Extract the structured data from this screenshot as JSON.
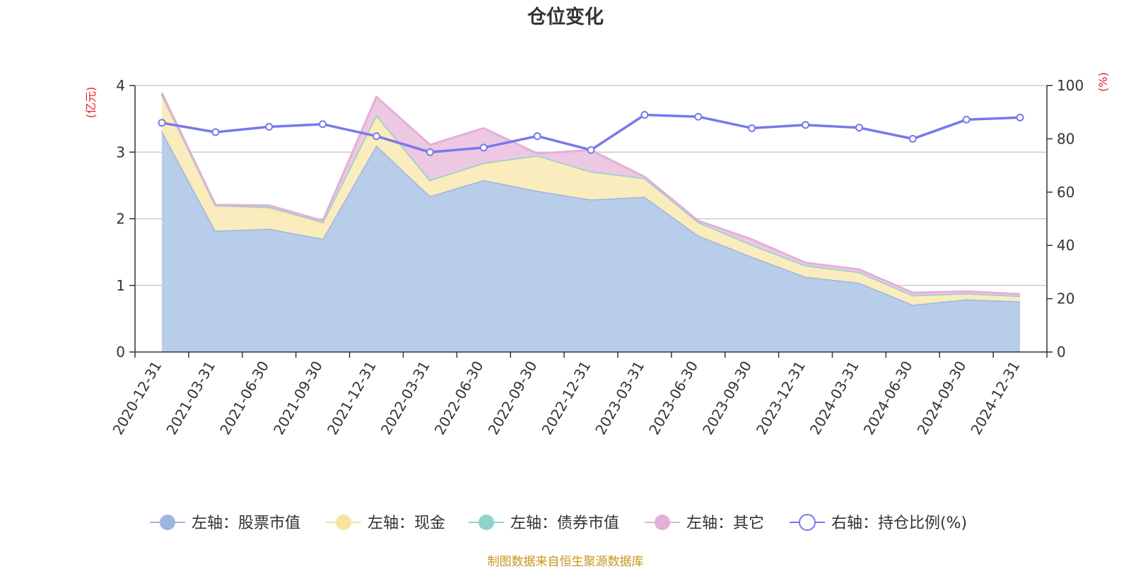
{
  "chart_data": {
    "type": "area",
    "title": "仓位变化",
    "left_axis": {
      "unit_label": "(亿元)",
      "ylim": [
        0,
        4
      ],
      "ticks": [
        "0",
        "1",
        "2",
        "3",
        "4"
      ]
    },
    "right_axis": {
      "unit_label": "(%)",
      "ylim": [
        0,
        100
      ],
      "ticks": [
        "0",
        "20",
        "40",
        "60",
        "80",
        "100"
      ]
    },
    "categories": [
      "2020-12-31",
      "2021-03-31",
      "2021-06-30",
      "2021-09-30",
      "2021-12-31",
      "2022-03-31",
      "2022-06-30",
      "2022-09-30",
      "2022-12-31",
      "2023-03-31",
      "2023-06-30",
      "2023-09-30",
      "2023-12-31",
      "2024-03-31",
      "2024-06-30",
      "2024-09-30",
      "2024-12-31"
    ],
    "stacked_series": [
      {
        "name": "左轴：股票市值",
        "color": "#9db6e0",
        "fill": "#b8cdea",
        "values": [
          3.32,
          1.82,
          1.85,
          1.7,
          3.1,
          2.34,
          2.58,
          2.42,
          2.29,
          2.33,
          1.75,
          1.43,
          1.13,
          1.04,
          0.71,
          0.79,
          0.76
        ]
      },
      {
        "name": "左轴：现金",
        "color": "#f7e3a0",
        "fill": "#faecbc",
        "values": [
          0.55,
          0.38,
          0.31,
          0.25,
          0.44,
          0.24,
          0.25,
          0.53,
          0.42,
          0.28,
          0.2,
          0.18,
          0.17,
          0.16,
          0.14,
          0.09,
          0.08
        ]
      },
      {
        "name": "左轴：债券市值",
        "color": "#8fd3cc",
        "fill": "#a3d9d3",
        "values": [
          0,
          0,
          0.02,
          0,
          0.02,
          0,
          0.01,
          0,
          0,
          0,
          0,
          0,
          0,
          0,
          0,
          0,
          0
        ]
      },
      {
        "name": "左轴：其它",
        "color": "#e3b0d8",
        "fill": "#ecc8e3",
        "values": [
          0.02,
          0.01,
          0.02,
          0.02,
          0.27,
          0.53,
          0.52,
          0.03,
          0.32,
          0.02,
          0.02,
          0.08,
          0.04,
          0.04,
          0.04,
          0.03,
          0.03
        ]
      }
    ],
    "line_series": {
      "name": "右轴：持仓比例(%)",
      "color": "#7878ec",
      "axis": "right",
      "values": [
        86,
        82.5,
        84.5,
        85.5,
        81,
        75,
        76.7,
        81,
        75.8,
        89,
        88.3,
        84,
        85.2,
        84.2,
        80,
        87.2,
        88
      ]
    },
    "legend": [
      "左轴：股票市值",
      "左轴：现金",
      "左轴：债券市值",
      "左轴：其它",
      "右轴：持仓比例(%)"
    ],
    "legend_position": "bottom",
    "grid": true
  },
  "source_note": "制图数据来自恒生聚源数据库"
}
